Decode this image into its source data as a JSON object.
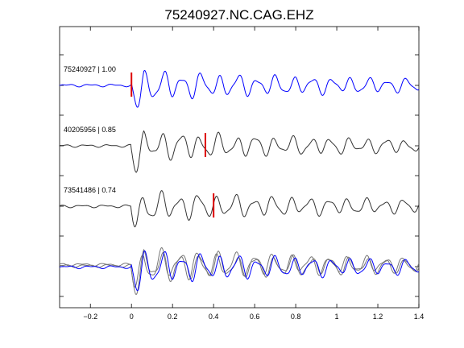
{
  "chart_data": {
    "type": "line",
    "title": "75240927.NC.CAG.EHZ",
    "xlabel": "",
    "ylabel": "",
    "xlim": [
      -0.35,
      1.4
    ],
    "x_ticks": [
      -0.2,
      0,
      0.2,
      0.4,
      0.6,
      0.8,
      1,
      1.2,
      1.4
    ],
    "x_tick_labels": [
      "−0.2",
      "0",
      "0.2",
      "0.4",
      "0.6",
      "0.8",
      "1",
      "1.2",
      "1.4"
    ],
    "grid": false,
    "colors": {
      "reference": "#0000ff",
      "match": "#333333",
      "overlay_match": "#777777",
      "pick": "#dd0000"
    },
    "series": [
      {
        "label": "75240927 | 1.00",
        "pick_time": 0.0,
        "color": "#0000ff"
      },
      {
        "label": "40205956 | 0.85",
        "pick_time": 0.36,
        "color": "#333333"
      },
      {
        "label": "73541486 | 0.74",
        "pick_time": 0.4,
        "color": "#333333"
      }
    ],
    "overlay": {
      "description_traces": [
        "75240927",
        "40205956",
        "73541486"
      ]
    }
  }
}
